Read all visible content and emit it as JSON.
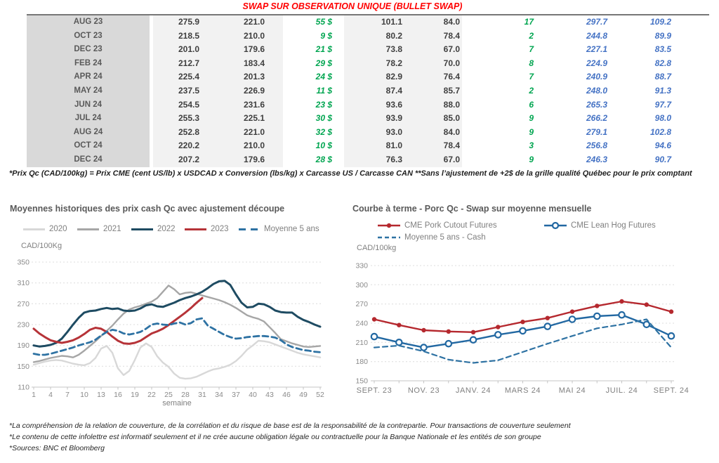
{
  "title": "SWAP SUR OBSERVATION UNIQUE (BULLET SWAP)",
  "colors": {
    "title_red": "#FF0000",
    "table_green": "#00A550",
    "table_blue": "#4472C4",
    "month_col_bg": "#D9D9D9",
    "value_col_bg": "#F2F2F2"
  },
  "table": {
    "rows": [
      [
        "AUG 23",
        "275.9",
        "221.0",
        "55 $",
        "101.1",
        "84.0",
        "17",
        "297.7",
        "109.2"
      ],
      [
        "OCT 23",
        "218.5",
        "210.0",
        "9 $",
        "80.2",
        "78.4",
        "2",
        "244.8",
        "89.9"
      ],
      [
        "DEC 23",
        "201.0",
        "179.6",
        "21 $",
        "73.8",
        "67.0",
        "7",
        "227.1",
        "83.5"
      ],
      [
        "FEB 24",
        "212.7",
        "183.4",
        "29 $",
        "78.2",
        "70.0",
        "8",
        "224.9",
        "82.8"
      ],
      [
        "APR 24",
        "225.4",
        "201.3",
        "24 $",
        "82.9",
        "76.4",
        "7",
        "240.9",
        "88.7"
      ],
      [
        "MAY 24",
        "237.5",
        "226.9",
        "11 $",
        "87.4",
        "85.7",
        "2",
        "248.0",
        "91.3"
      ],
      [
        "JUN 24",
        "254.5",
        "231.6",
        "23 $",
        "93.6",
        "88.0",
        "6",
        "265.3",
        "97.7"
      ],
      [
        "JUL 24",
        "255.3",
        "225.1",
        "30 $",
        "93.9",
        "85.0",
        "9",
        "266.2",
        "98.0"
      ],
      [
        "AUG 24",
        "252.8",
        "221.0",
        "32 $",
        "93.0",
        "84.0",
        "9",
        "279.1",
        "102.8"
      ],
      [
        "OCT 24",
        "220.2",
        "210.0",
        "10 $",
        "81.0",
        "78.4",
        "3",
        "256.8",
        "94.6"
      ],
      [
        "DEC 24",
        "207.2",
        "179.6",
        "28 $",
        "76.3",
        "67.0",
        "9",
        "246.3",
        "90.7"
      ]
    ]
  },
  "footnote_top": "*Prix Qc (CAD/100kg) = Prix CME (cent US/lb) x USDCAD x Conversion (lbs/kg) x Carcasse US / Carcasse CAN **Sans l’ajustement de +2$ de la grille qualité Québec pour le prix comptant",
  "chart_data": [
    {
      "type": "line",
      "title": "Moyennes historiques des prix cash Qc avec ajustement découpe",
      "ylabel": "CAD/100Kg",
      "xlabel": "semaine",
      "ylim": [
        110,
        350
      ],
      "yticks": [
        110,
        150,
        190,
        230,
        270,
        310,
        350
      ],
      "xticks": [
        1,
        4,
        7,
        10,
        13,
        16,
        19,
        22,
        25,
        28,
        31,
        34,
        37,
        40,
        43,
        46,
        49,
        52
      ],
      "x_range": [
        1,
        52
      ],
      "grid": "horizontal-dashed",
      "legend_position": "top",
      "series": [
        {
          "name": "2020",
          "color": "#D8D8D8",
          "style": "solid",
          "values": [
            153,
            156,
            159,
            161,
            162,
            161,
            158,
            155,
            153,
            152,
            156,
            166,
            184,
            189,
            176,
            146,
            133,
            141,
            162,
            186,
            194,
            187,
            169,
            157,
            149,
            136,
            128,
            126,
            127,
            130,
            135,
            140,
            144,
            146,
            149,
            153,
            160,
            170,
            182,
            190,
            199,
            198,
            196,
            192,
            188,
            184,
            180,
            176,
            173,
            171,
            169,
            167
          ]
        },
        {
          "name": "2021",
          "color": "#A6A6A6",
          "style": "solid",
          "values": [
            158,
            160,
            163,
            166,
            168,
            170,
            169,
            167,
            172,
            180,
            189,
            198,
            208,
            218,
            228,
            240,
            251,
            259,
            263,
            266,
            270,
            274,
            281,
            293,
            305,
            298,
            288,
            291,
            292,
            289,
            286,
            283,
            280,
            277,
            273,
            268,
            262,
            255,
            248,
            244,
            241,
            236,
            225,
            214,
            202,
            198,
            194,
            191,
            188,
            187,
            188,
            189
          ]
        },
        {
          "name": "2022",
          "color": "#1E4B62",
          "style": "solid",
          "values": [
            190,
            188,
            189,
            191,
            195,
            203,
            216,
            230,
            243,
            253,
            256,
            257,
            260,
            262,
            260,
            261,
            257,
            256,
            257,
            261,
            267,
            269,
            265,
            264,
            268,
            272,
            277,
            281,
            284,
            288,
            293,
            300,
            308,
            313,
            314,
            306,
            288,
            272,
            263,
            264,
            270,
            269,
            264,
            257,
            254,
            253,
            253,
            245,
            239,
            235,
            230,
            226
          ]
        },
        {
          "name": "2023",
          "color": "#B63338",
          "style": "solid",
          "values": [
            222,
            213,
            206,
            200,
            197,
            195,
            197,
            200,
            205,
            212,
            220,
            224,
            222,
            216,
            207,
            199,
            194,
            193,
            195,
            199,
            206,
            213,
            217,
            222,
            229,
            237,
            245,
            253,
            262,
            272,
            281,
            null,
            null,
            null,
            null,
            null,
            null,
            null,
            null,
            null,
            null,
            null,
            null,
            null,
            null,
            null,
            null,
            null,
            null,
            null,
            null,
            null
          ]
        },
        {
          "name": "Moyenne 5 ans",
          "color": "#2E72A3",
          "style": "dashed",
          "values": [
            174,
            172,
            172,
            174,
            177,
            180,
            183,
            186,
            190,
            193,
            196,
            201,
            209,
            216,
            220,
            218,
            213,
            211,
            213,
            216,
            222,
            230,
            232,
            230,
            229,
            232,
            234,
            230,
            233,
            240,
            242,
            228,
            222,
            216,
            210,
            206,
            203,
            204,
            206,
            207,
            208,
            208,
            207,
            205,
            200,
            192,
            187,
            184,
            181,
            180,
            178,
            177
          ]
        }
      ]
    },
    {
      "type": "line",
      "title": "Courbe à terme - Porc Qc - Swap sur moyenne mensuelle",
      "ylabel": "CAD/100kg",
      "ylim": [
        150,
        330
      ],
      "yticks": [
        150,
        180,
        210,
        240,
        270,
        300,
        330
      ],
      "x_points": 13,
      "x_labels": [
        "SEPT. 23",
        "NOV. 23",
        "JANV. 24",
        "MARS 24",
        "MAI 24",
        "JUIL. 24",
        "SEPT. 24"
      ],
      "x_label_indices": [
        0,
        2,
        4,
        6,
        8,
        10,
        12
      ],
      "grid": "horizontal-dashed",
      "legend_position": "top",
      "series": [
        {
          "name": "CME Pork Cutout Futures",
          "color": "#B5282E",
          "style": "solid",
          "marker": "filled-circle",
          "values": [
            246,
            237,
            229,
            227,
            226,
            234,
            242,
            248,
            258,
            267,
            274,
            269,
            258
          ]
        },
        {
          "name": "CME Lean Hog Futures",
          "color": "#2268A2",
          "style": "solid",
          "marker": "open-circle",
          "values": [
            219,
            210,
            202,
            208,
            214,
            222,
            228,
            235,
            246,
            251,
            253,
            238,
            220
          ]
        },
        {
          "name": "Moyenne 5 ans - Cash",
          "color": "#2E72A3",
          "style": "dashed",
          "values": [
            202,
            205,
            196,
            183,
            178,
            182,
            195,
            208,
            220,
            232,
            238,
            246,
            202
          ]
        }
      ]
    }
  ],
  "footnotes_bottom": [
    "*La compréhension de la relation de couverture, de la corrélation et du risque de base est de la responsabilité de la contrepartie. Pour transactions de couverture seulement",
    "*Le contenu de cette infolettre est informatif seulement et il ne crée aucune obligation légale ou contractuelle pour la Banque Nationale et les entités de son groupe",
    "*Sources: BNC et Bloomberg"
  ]
}
